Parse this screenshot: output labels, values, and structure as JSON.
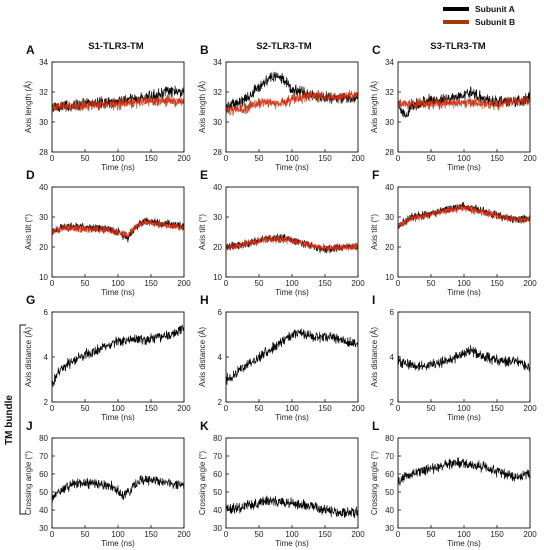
{
  "legend": {
    "items": [
      {
        "label": "Subunit A",
        "color": "#000000"
      },
      {
        "label": "Subunit B",
        "color": "#a23c0a"
      }
    ]
  },
  "columns": [
    "S1-TLR3-TM",
    "S2-TLR3-TM",
    "S3-TLR3-TM"
  ],
  "bundle_label": "TM bundle",
  "colors": {
    "subunit_a": "#000000",
    "subunit_b": "#a23c0a",
    "overlay_red": "#ff1a1a",
    "overlay_green": "#1c8a1c"
  },
  "chart_data": [
    {
      "panel": "A",
      "type": "line",
      "column": "S1-TLR3-TM",
      "xlabel": "Time (ns)",
      "ylabel": "Axis length (Å)",
      "xlim": [
        0,
        200
      ],
      "ylim": [
        28,
        34
      ],
      "xticks": [
        0,
        50,
        100,
        150,
        200
      ],
      "yticks": [
        28,
        30,
        32,
        34
      ],
      "series": [
        {
          "name": "Subunit A",
          "x": [
            0,
            50,
            100,
            150,
            170,
            200
          ],
          "y": [
            31.0,
            31.2,
            31.4,
            31.7,
            32.0,
            32.0
          ]
        },
        {
          "name": "Subunit B",
          "x": [
            0,
            50,
            100,
            150,
            200
          ],
          "y": [
            31.0,
            31.1,
            31.2,
            31.4,
            31.4
          ]
        }
      ]
    },
    {
      "panel": "B",
      "type": "line",
      "column": "S2-TLR3-TM",
      "xlabel": "Time (ns)",
      "ylabel": "Axis length (Å)",
      "xlim": [
        0,
        200
      ],
      "ylim": [
        28,
        34
      ],
      "xticks": [
        0,
        50,
        100,
        150,
        200
      ],
      "yticks": [
        28,
        30,
        32,
        34
      ],
      "series": [
        {
          "name": "Subunit A",
          "x": [
            0,
            30,
            60,
            80,
            100,
            130,
            160,
            200
          ],
          "y": [
            31.0,
            31.5,
            32.8,
            33.1,
            32.2,
            31.8,
            31.6,
            31.6
          ]
        },
        {
          "name": "Subunit B",
          "x": [
            0,
            30,
            60,
            80,
            100,
            130,
            160,
            200
          ],
          "y": [
            30.8,
            30.9,
            31.4,
            31.2,
            31.5,
            31.8,
            31.6,
            31.8
          ]
        }
      ]
    },
    {
      "panel": "C",
      "type": "line",
      "column": "S3-TLR3-TM",
      "xlabel": "Time (ns)",
      "ylabel": "Axis length (Å)",
      "xlim": [
        0,
        200
      ],
      "ylim": [
        28,
        34
      ],
      "xticks": [
        0,
        50,
        100,
        150,
        200
      ],
      "yticks": [
        28,
        30,
        32,
        34
      ],
      "series": [
        {
          "name": "Subunit A",
          "x": [
            0,
            10,
            20,
            40,
            70,
            100,
            110,
            140,
            170,
            200
          ],
          "y": [
            31.5,
            30.3,
            31.0,
            31.4,
            31.5,
            31.8,
            32.0,
            31.4,
            31.3,
            31.6
          ]
        },
        {
          "name": "Subunit B",
          "x": [
            0,
            50,
            100,
            150,
            200
          ],
          "y": [
            31.2,
            31.2,
            31.3,
            31.2,
            31.5
          ]
        }
      ]
    },
    {
      "panel": "D",
      "type": "line",
      "column": "S1-TLR3-TM",
      "xlabel": "Time (ns)",
      "ylabel": "Axis tilt (°)",
      "xlim": [
        0,
        200
      ],
      "ylim": [
        10,
        40
      ],
      "xticks": [
        0,
        50,
        100,
        150,
        200
      ],
      "yticks": [
        10,
        20,
        30,
        40
      ],
      "series": [
        {
          "name": "Subunit A",
          "x": [
            0,
            20,
            50,
            80,
            100,
            115,
            125,
            140,
            160,
            200
          ],
          "y": [
            25,
            27,
            26.5,
            26,
            25,
            23,
            26,
            29,
            28,
            27
          ]
        },
        {
          "name": "Subunit B",
          "x": [
            0,
            20,
            50,
            80,
            100,
            115,
            125,
            140,
            160,
            200
          ],
          "y": [
            25,
            26.5,
            26,
            25.8,
            25,
            23.5,
            26.5,
            28.5,
            27.5,
            26.5
          ]
        }
      ]
    },
    {
      "panel": "E",
      "type": "line",
      "column": "S2-TLR3-TM",
      "xlabel": "Time (ns)",
      "ylabel": "Axis tilt (°)",
      "xlim": [
        0,
        200
      ],
      "ylim": [
        10,
        40
      ],
      "xticks": [
        0,
        50,
        100,
        150,
        200
      ],
      "yticks": [
        10,
        20,
        30,
        40
      ],
      "series": [
        {
          "name": "Subunit A",
          "x": [
            0,
            30,
            60,
            90,
            120,
            150,
            170,
            200
          ],
          "y": [
            20,
            21,
            23,
            23,
            21,
            19,
            20,
            20
          ]
        },
        {
          "name": "Subunit B",
          "x": [
            0,
            30,
            60,
            90,
            120,
            150,
            170,
            200
          ],
          "y": [
            20,
            21,
            22.5,
            22.5,
            21,
            19.5,
            20,
            20
          ]
        }
      ]
    },
    {
      "panel": "F",
      "type": "line",
      "column": "S3-TLR3-TM",
      "xlabel": "Time (ns)",
      "ylabel": "Axis tilt (°)",
      "xlim": [
        0,
        200
      ],
      "ylim": [
        10,
        40
      ],
      "xticks": [
        0,
        50,
        100,
        150,
        200
      ],
      "yticks": [
        10,
        20,
        30,
        40
      ],
      "series": [
        {
          "name": "Subunit A",
          "x": [
            0,
            20,
            50,
            80,
            100,
            130,
            160,
            180,
            200
          ],
          "y": [
            27,
            30,
            31,
            33,
            33.5,
            32,
            30,
            29,
            30
          ]
        },
        {
          "name": "Subunit B",
          "x": [
            0,
            20,
            50,
            80,
            100,
            130,
            160,
            180,
            200
          ],
          "y": [
            27,
            29.5,
            31,
            32.5,
            33,
            31.5,
            30,
            29,
            29.5
          ]
        }
      ]
    },
    {
      "panel": "G",
      "type": "line",
      "column": "S1-TLR3-TM",
      "xlabel": "Time (ns)",
      "ylabel": "Axis distance (Å)",
      "xlim": [
        0,
        200
      ],
      "ylim": [
        2,
        6
      ],
      "xticks": [
        0,
        50,
        100,
        150,
        200
      ],
      "yticks": [
        2,
        4,
        6
      ],
      "series": [
        {
          "name": "Subunit A",
          "x": [
            0,
            10,
            30,
            50,
            70,
            100,
            130,
            150,
            180,
            200
          ],
          "y": [
            2.8,
            3.4,
            3.8,
            4.1,
            4.3,
            4.7,
            4.8,
            4.8,
            5.0,
            5.3
          ]
        }
      ]
    },
    {
      "panel": "H",
      "type": "line",
      "column": "S2-TLR3-TM",
      "xlabel": "Time (ns)",
      "ylabel": "Axis distance (Å)",
      "xlim": [
        0,
        200
      ],
      "ylim": [
        2,
        6
      ],
      "xticks": [
        0,
        50,
        100,
        150,
        200
      ],
      "yticks": [
        2,
        4,
        6
      ],
      "series": [
        {
          "name": "Subunit A",
          "x": [
            0,
            20,
            50,
            80,
            110,
            130,
            160,
            180,
            200
          ],
          "y": [
            3.0,
            3.4,
            4.0,
            4.6,
            5.1,
            4.9,
            4.9,
            4.7,
            4.6
          ]
        }
      ]
    },
    {
      "panel": "I",
      "type": "line",
      "column": "S3-TLR3-TM",
      "xlabel": "Time (ns)",
      "ylabel": "Axis distance (Å)",
      "xlim": [
        0,
        200
      ],
      "ylim": [
        2,
        6
      ],
      "xticks": [
        0,
        50,
        100,
        150,
        200
      ],
      "yticks": [
        2,
        4,
        6
      ],
      "series": [
        {
          "name": "Subunit A",
          "x": [
            0,
            30,
            60,
            90,
            110,
            130,
            160,
            180,
            200
          ],
          "y": [
            3.8,
            3.6,
            3.7,
            4.0,
            4.3,
            4.0,
            3.8,
            3.8,
            3.5
          ]
        }
      ]
    },
    {
      "panel": "J",
      "type": "line",
      "column": "S1-TLR3-TM",
      "xlabel": "Time (ns)",
      "ylabel": "Crossing angle (°)",
      "xlim": [
        0,
        200
      ],
      "ylim": [
        30,
        80
      ],
      "xticks": [
        0,
        50,
        100,
        150,
        200
      ],
      "yticks": [
        30,
        40,
        50,
        60,
        70,
        80
      ],
      "series": [
        {
          "name": "Subunit A",
          "x": [
            0,
            10,
            30,
            60,
            90,
            110,
            120,
            135,
            160,
            200
          ],
          "y": [
            45,
            50,
            54,
            55,
            53,
            48,
            52,
            57,
            56,
            54
          ]
        }
      ]
    },
    {
      "panel": "K",
      "type": "line",
      "column": "S2-TLR3-TM",
      "xlabel": "Time (ns)",
      "ylabel": "Crossing angle (°)",
      "xlim": [
        0,
        200
      ],
      "ylim": [
        30,
        80
      ],
      "xticks": [
        0,
        50,
        100,
        150,
        200
      ],
      "yticks": [
        30,
        40,
        50,
        60,
        70,
        80
      ],
      "series": [
        {
          "name": "Subunit A",
          "x": [
            0,
            30,
            60,
            90,
            120,
            150,
            170,
            200
          ],
          "y": [
            40,
            42,
            45,
            44,
            43,
            40,
            38,
            39
          ]
        }
      ]
    },
    {
      "panel": "L",
      "type": "line",
      "column": "S3-TLR3-TM",
      "xlabel": "Time (ns)",
      "ylabel": "Crossing angle (°)",
      "xlim": [
        0,
        200
      ],
      "ylim": [
        30,
        80
      ],
      "xticks": [
        0,
        50,
        100,
        150,
        200
      ],
      "yticks": [
        30,
        40,
        50,
        60,
        70,
        80
      ],
      "series": [
        {
          "name": "Subunit A",
          "x": [
            0,
            20,
            50,
            80,
            100,
            130,
            160,
            180,
            200
          ],
          "y": [
            56,
            60,
            63,
            66,
            66,
            64,
            60,
            58,
            60
          ]
        }
      ]
    }
  ]
}
